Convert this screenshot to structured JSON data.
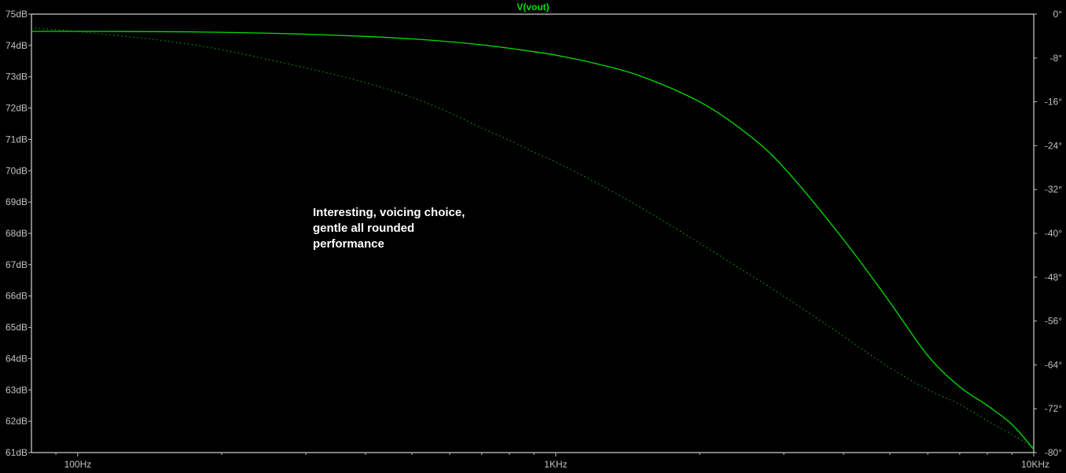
{
  "chart_data": {
    "type": "line",
    "title": "V(vout)",
    "xscale": "log",
    "xlim": [
      80,
      10000
    ],
    "x_ticks": [
      {
        "value": 100,
        "label": "100Hz"
      },
      {
        "value": 1000,
        "label": "1KHz"
      },
      {
        "value": 10000,
        "label": "10KHz"
      }
    ],
    "y_left": {
      "unit": "dB",
      "ylim": [
        61,
        75
      ],
      "ticks": [
        "75dB",
        "74dB",
        "73dB",
        "72dB",
        "71dB",
        "70dB",
        "69dB",
        "68dB",
        "67dB",
        "66dB",
        "65dB",
        "64dB",
        "63dB",
        "62dB",
        "61dB"
      ]
    },
    "y_right": {
      "unit": "°",
      "ylim": [
        -80,
        0
      ],
      "ticks": [
        "0°",
        "-8°",
        "-16°",
        "-24°",
        "-32°",
        "-40°",
        "-48°",
        "-56°",
        "-64°",
        "-72°",
        "-80°"
      ]
    },
    "grid": false,
    "colors": {
      "background": "#000000",
      "trace": "#00e000",
      "axis_text": "#c0c0c0",
      "note": "#ffffff"
    },
    "series": [
      {
        "style": "solid",
        "axis": "left",
        "x": [
          80,
          100,
          150,
          200,
          300,
          400,
          500,
          600,
          700,
          800,
          900,
          1000,
          1200,
          1500,
          2000,
          2500,
          3000,
          4000,
          5000,
          6000,
          7000,
          8000,
          9000,
          10000
        ],
        "values": [
          74.45,
          74.45,
          74.44,
          74.42,
          74.36,
          74.29,
          74.21,
          74.12,
          74.02,
          73.91,
          73.8,
          73.69,
          73.44,
          73.03,
          72.2,
          71.21,
          70.1,
          67.8,
          65.8,
          64.1,
          63.1,
          62.5,
          61.9,
          61.1
        ]
      },
      {
        "style": "dotted",
        "axis": "right",
        "x": [
          80,
          100,
          150,
          200,
          300,
          400,
          500,
          600,
          700,
          800,
          900,
          1000,
          1200,
          1500,
          2000,
          3000,
          4000,
          5000,
          6000,
          7000,
          8000,
          9000,
          10000
        ],
        "values": [
          -2.5,
          -3.2,
          -4.8,
          -6.5,
          -9.8,
          -12.5,
          -15.2,
          -18.0,
          -20.8,
          -23.0,
          -25.2,
          -27.0,
          -30.5,
          -35.2,
          -41.8,
          -51.5,
          -58.8,
          -64.5,
          -68.5,
          -71.2,
          -74.2,
          -76.7,
          -79.0
        ]
      }
    ],
    "annotation": {
      "lines": [
        "Interesting, voicing choice,",
        "gentle all rounded",
        "performance"
      ]
    }
  }
}
